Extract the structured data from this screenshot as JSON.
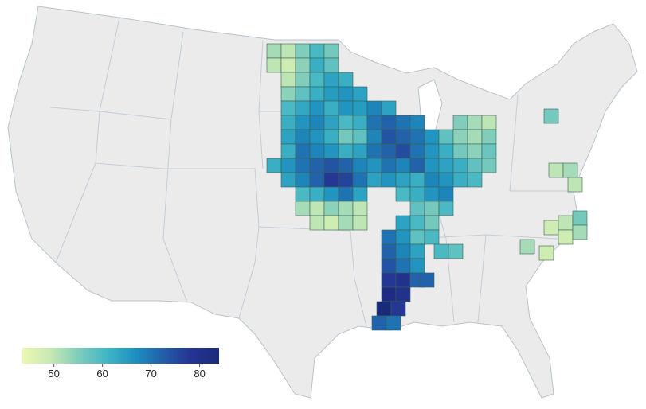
{
  "chart_data": {
    "type": "choropleth",
    "colorscale": [
      "#edf8b1",
      "#c7e9b4",
      "#7fcdbb",
      "#41b6c4",
      "#1d91c0",
      "#225ea8",
      "#253494",
      "#1a2a7a"
    ],
    "clim": [
      43.5,
      84
    ],
    "cticks": [
      50,
      60,
      70,
      80
    ],
    "values": [
      52,
      50,
      55,
      60,
      56,
      50,
      48,
      54,
      62,
      58,
      50,
      55,
      60,
      64,
      62,
      54,
      58,
      62,
      65,
      66,
      64,
      60,
      63,
      66,
      62,
      66,
      65,
      68,
      64,
      62,
      66,
      68,
      64,
      60,
      62,
      70,
      72,
      70,
      68,
      55,
      52,
      50,
      64,
      68,
      66,
      62,
      56,
      58,
      68,
      74,
      72,
      70,
      66,
      58,
      54,
      52,
      55,
      62,
      70,
      68,
      66,
      62,
      64,
      70,
      72,
      75,
      70,
      66,
      62,
      56,
      54,
      57,
      62,
      66,
      70,
      72,
      74,
      72,
      68,
      66,
      70,
      68,
      72,
      66,
      64,
      62,
      58,
      56,
      64,
      68,
      72,
      78,
      76,
      70,
      64,
      66,
      64,
      62,
      68,
      66,
      62,
      60,
      60,
      62,
      66,
      70,
      64,
      60,
      62,
      66,
      68,
      52,
      50,
      54,
      52,
      50,
      58,
      56,
      60,
      50,
      48,
      52,
      50,
      64,
      60,
      56,
      70,
      66,
      58,
      60,
      72,
      68,
      64,
      60,
      58,
      74,
      70,
      66,
      78,
      80,
      72,
      72,
      82,
      80,
      84,
      78,
      72,
      70,
      56,
      50,
      52,
      50,
      48,
      50,
      56,
      48,
      52,
      52,
      48
    ]
  }
}
